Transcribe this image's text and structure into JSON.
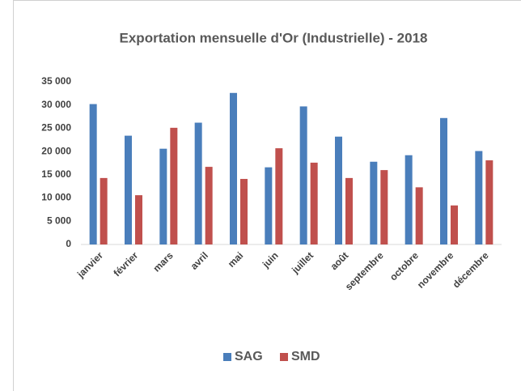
{
  "chart_data": {
    "type": "bar",
    "title": "Exportation mensuelle d'Or (Industrielle) - 2018",
    "categories": [
      "janvier",
      "février",
      "mars",
      "avril",
      "mai",
      "juin",
      "juillet",
      "août",
      "septembre",
      "octobre",
      "novembre",
      "décembre"
    ],
    "series": [
      {
        "name": "SAG",
        "color": "#4a7ebb",
        "values": [
          30200,
          23400,
          20600,
          26200,
          32600,
          16600,
          29700,
          23200,
          17800,
          19200,
          27200,
          20100
        ]
      },
      {
        "name": "SMD",
        "color": "#c0504d",
        "values": [
          14300,
          10600,
          25100,
          16700,
          14100,
          20700,
          17600,
          14300,
          16000,
          12300,
          8400,
          18100
        ]
      }
    ],
    "ylim": [
      0,
      35000
    ],
    "yticks": [
      0,
      {
        "value": 5000,
        "label": "5 000"
      },
      {
        "value": 10000,
        "label": "10 000"
      },
      {
        "value": 15000,
        "label": "15 000"
      },
      {
        "value": 20000,
        "label": "20 000"
      },
      {
        "value": 25000,
        "label": "25 000"
      },
      {
        "value": 30000,
        "label": "30 000"
      },
      {
        "value": 35000,
        "label": "35 000"
      }
    ],
    "grid": false,
    "legend": "bottom"
  }
}
